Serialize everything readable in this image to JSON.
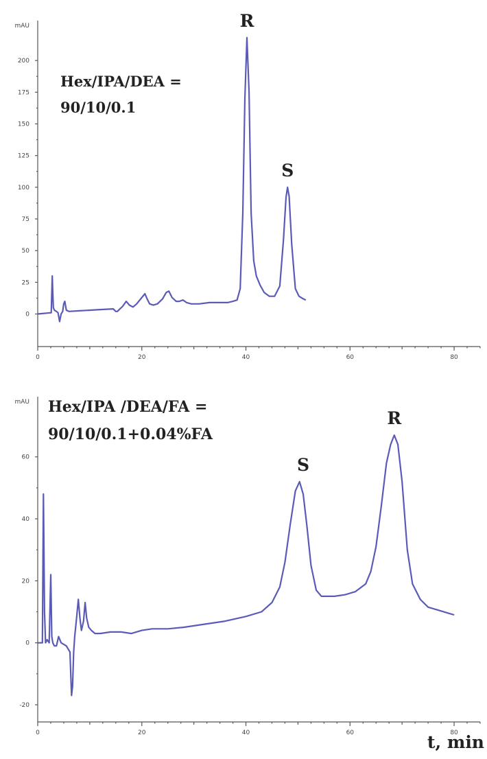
{
  "chart_data": [
    {
      "type": "line",
      "y_unit": "mAU",
      "x_ticks": [
        "0",
        "20",
        "40",
        "60",
        "80"
      ],
      "y_ticks": [
        "0",
        "25",
        "50",
        "75",
        "100",
        "125",
        "150",
        "175",
        "200"
      ],
      "xlim": [
        0,
        85
      ],
      "ylim": [
        -10,
        225
      ],
      "conditions": [
        "Hex/IPA/DEA =",
        "90/10/0.1"
      ],
      "peak_labels": [
        {
          "text": "R",
          "x": 40.2,
          "y": 218
        },
        {
          "text": "S",
          "x": 48,
          "y": 100
        }
      ],
      "series": [
        {
          "color": "#5a5ab8",
          "x": [
            0,
            2.6,
            2.8,
            2.9,
            3.0,
            3.2,
            3.6,
            3.9,
            4.2,
            4.5,
            4.8,
            5.0,
            5.2,
            5.5,
            6,
            8,
            10,
            12,
            14.5,
            15,
            15.3,
            15.8,
            16.3,
            17,
            17.6,
            18.3,
            19,
            20,
            20.6,
            21,
            21.5,
            22.2,
            23,
            24,
            24.7,
            25.2,
            25.8,
            26.6,
            27.2,
            27.9,
            28.6,
            29.5,
            31,
            33,
            35,
            36.5,
            37.5,
            38.3,
            38.9,
            39.4,
            39.8,
            40.2,
            40.6,
            41,
            41.5,
            42,
            42.7,
            43.5,
            44.5,
            45.5,
            46.5,
            47.2,
            47.7,
            48,
            48.3,
            48.8,
            49.5,
            50.2,
            51,
            51.5
          ],
          "y": [
            0,
            1,
            30,
            16,
            5,
            3,
            2,
            1,
            -6,
            0,
            2,
            8,
            10,
            3,
            2,
            2.5,
            3,
            3.5,
            4,
            2,
            2,
            4,
            6,
            10,
            7,
            5.5,
            8,
            13,
            16,
            12,
            8,
            7,
            8,
            12,
            17,
            18,
            13,
            10,
            10,
            11,
            9,
            8,
            8,
            9,
            9,
            9,
            10,
            11,
            20,
            80,
            170,
            218,
            175,
            80,
            42,
            30,
            23,
            17,
            14,
            14,
            22,
            58,
            92,
            100,
            93,
            55,
            20,
            14,
            12,
            11
          ]
        }
      ]
    },
    {
      "type": "line",
      "y_unit": "mAU",
      "x_ticks": [
        "0",
        "20",
        "40",
        "60",
        "80"
      ],
      "y_ticks": [
        "-20",
        "0",
        "20",
        "40",
        "60"
      ],
      "xlim": [
        0,
        85
      ],
      "ylim": [
        -22,
        75
      ],
      "conditions": [
        "Hex/IPA /DEA/FA =",
        "90/10/0.1+0.04%FA"
      ],
      "peak_labels": [
        {
          "text": "S",
          "x": 51,
          "y": 52
        },
        {
          "text": "R",
          "x": 68.5,
          "y": 67
        }
      ],
      "series": [
        {
          "color": "#5a5ab8",
          "x": [
            0,
            0.9,
            1.1,
            1.3,
            1.5,
            1.8,
            2.2,
            2.5,
            2.7,
            2.9,
            3.2,
            3.6,
            4.0,
            4.5,
            5.5,
            6.2,
            6.5,
            6.7,
            6.9,
            7.1,
            7.4,
            7.8,
            8.1,
            8.4,
            8.8,
            9.1,
            9.4,
            9.8,
            10.3,
            11,
            12,
            14,
            16,
            18,
            20,
            22,
            25,
            28,
            32,
            36,
            40,
            43,
            45,
            46.5,
            47.5,
            48.5,
            49.5,
            50.3,
            51,
            51.7,
            52.5,
            53.5,
            54.5,
            55.5,
            57,
            59,
            61,
            63,
            64,
            65,
            66,
            67,
            67.8,
            68.5,
            69.2,
            70,
            71,
            72,
            73.5,
            75,
            77,
            79,
            80
          ],
          "y": [
            0,
            0,
            48,
            10,
            0,
            1,
            0,
            22,
            2,
            0,
            -1,
            -1,
            2,
            0,
            -1,
            -3,
            -17,
            -14,
            -3,
            2,
            7,
            14,
            8,
            4,
            7,
            13,
            8,
            5,
            4,
            3,
            3,
            3.5,
            3.5,
            3,
            4,
            4.5,
            4.5,
            5,
            6,
            7,
            8.5,
            10,
            13,
            18,
            26,
            38,
            49,
            52,
            48,
            38,
            25,
            17,
            15,
            15,
            15,
            15.5,
            16.5,
            19,
            23,
            31,
            44,
            58,
            64,
            67,
            64,
            52,
            30,
            19,
            14,
            11.5,
            10.5,
            9.5,
            9
          ]
        }
      ]
    }
  ],
  "x_axis_label": "t, min"
}
